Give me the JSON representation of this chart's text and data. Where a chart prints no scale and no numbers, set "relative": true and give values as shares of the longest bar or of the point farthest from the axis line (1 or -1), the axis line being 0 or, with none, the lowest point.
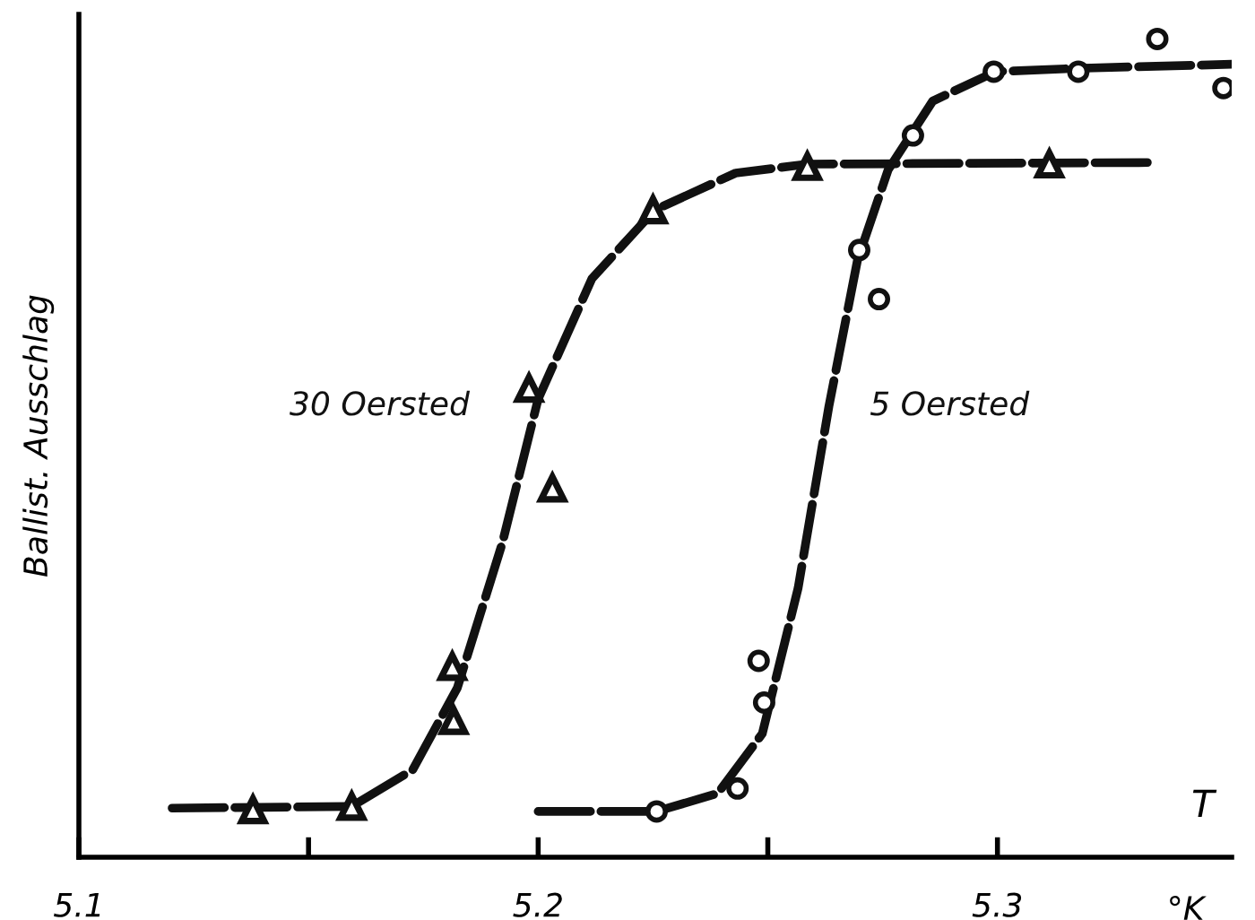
{
  "chart_data": {
    "type": "scatter",
    "relative": true,
    "ylabel": "Ballist. Ausschlag",
    "xlabel": "T",
    "annotations": [
      "°K"
    ],
    "xlim": [
      5.1,
      5.351
    ],
    "xticks": [
      5.1,
      {
        "value": 5.15,
        "label": null
      },
      5.2,
      {
        "value": 5.25,
        "label": null
      },
      5.3
    ],
    "grid": false,
    "legend": false,
    "series": [
      {
        "name": "30 Oersted",
        "marker": "triangle",
        "color": "#111111",
        "x": [
          5.1379,
          5.1594,
          5.1813,
          5.1816,
          5.2031,
          5.198,
          5.225,
          5.2586,
          5.3113
        ],
        "values": [
          0.058,
          0.062,
          0.233,
          0.167,
          0.451,
          0.573,
          0.791,
          0.844,
          0.847
        ]
      },
      {
        "name": "5 Oersted",
        "marker": "circle",
        "color": "#111111",
        "x": [
          5.2258,
          5.2434,
          5.248,
          5.2492,
          5.2699,
          5.2742,
          5.2816,
          5.2992,
          5.3176,
          5.3348,
          5.3492
        ],
        "values": [
          0.056,
          0.084,
          0.24,
          0.189,
          0.742,
          0.682,
          0.882,
          0.96,
          0.96,
          1.0,
          0.94
        ]
      },
      {
        "type": "line",
        "line_style": "dashed",
        "color": "#111111",
        "x": [
          5.1203,
          5.1594,
          5.1727,
          5.1824,
          5.1922,
          5.2,
          5.2117,
          5.2254,
          5.243,
          5.2586,
          5.3348
        ],
        "values": [
          0.06,
          0.062,
          0.107,
          0.207,
          0.384,
          0.56,
          0.707,
          0.791,
          0.836,
          0.847,
          0.849
        ]
      },
      {
        "type": "line",
        "line_style": "dashed",
        "color": "#111111",
        "x": [
          5.2,
          5.2258,
          5.2391,
          5.2488,
          5.2566,
          5.2633,
          5.2695,
          5.2762,
          5.2859,
          5.2996,
          5.3172,
          5.351
        ],
        "values": [
          0.056,
          0.056,
          0.078,
          0.151,
          0.329,
          0.551,
          0.729,
          0.84,
          0.924,
          0.96,
          0.964,
          0.969
        ]
      }
    ]
  }
}
